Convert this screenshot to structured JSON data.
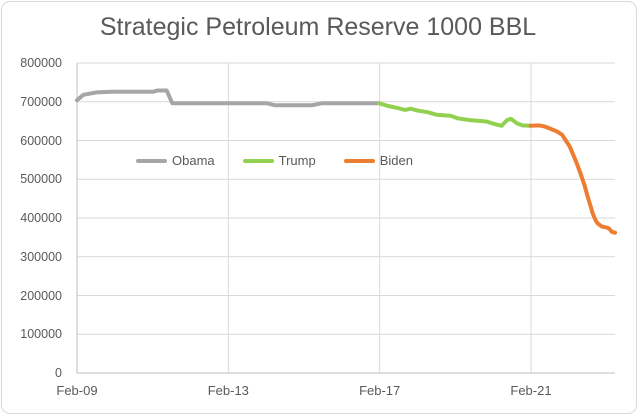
{
  "title": "Strategic Petroleum Reserve 1000 BBL",
  "colors": {
    "background": "#ffffff",
    "chart_border": "#d9d9d9",
    "gridline": "#d9d9d9",
    "axis_line": "#bfbfbf",
    "text": "#595959",
    "obama_gray": "#a6a6a6",
    "trump_green": "#92d050",
    "biden_orange": "#ed7d31"
  },
  "chart_data": {
    "type": "line",
    "title": "Strategic Petroleum Reserve 1000 BBL",
    "xlabel": "",
    "ylabel": "",
    "grid": true,
    "legend_position": "inside-plot-upper-left",
    "ylim": [
      0,
      800000
    ],
    "xlim": [
      2009.08,
      2023.3
    ],
    "y_ticks": [
      "0",
      "100000",
      "200000",
      "300000",
      "400000",
      "500000",
      "600000",
      "700000",
      "800000"
    ],
    "x_ticks": [
      "Feb-09",
      "Feb-13",
      "Feb-17",
      "Feb-21"
    ],
    "x_tick_years": [
      2009.08,
      2013.08,
      2017.08,
      2021.08
    ],
    "series": [
      {
        "name": "Obama",
        "color": "#a6a6a6",
        "points": [
          [
            2009.08,
            704000
          ],
          [
            2009.25,
            718000
          ],
          [
            2009.6,
            724000
          ],
          [
            2010.0,
            726000
          ],
          [
            2011.1,
            726000
          ],
          [
            2011.2,
            729000
          ],
          [
            2011.45,
            729000
          ],
          [
            2011.6,
            696000
          ],
          [
            2014.1,
            696000
          ],
          [
            2014.3,
            691000
          ],
          [
            2015.3,
            691000
          ],
          [
            2015.55,
            696000
          ],
          [
            2017.07,
            696000
          ]
        ]
      },
      {
        "name": "Trump",
        "color": "#92d050",
        "points": [
          [
            2017.07,
            696000
          ],
          [
            2017.3,
            689000
          ],
          [
            2017.55,
            684000
          ],
          [
            2017.75,
            679000
          ],
          [
            2017.9,
            682000
          ],
          [
            2018.1,
            677000
          ],
          [
            2018.35,
            673000
          ],
          [
            2018.6,
            666000
          ],
          [
            2018.95,
            664000
          ],
          [
            2019.15,
            657000
          ],
          [
            2019.5,
            652000
          ],
          [
            2019.9,
            649000
          ],
          [
            2020.1,
            643000
          ],
          [
            2020.3,
            638000
          ],
          [
            2020.45,
            653000
          ],
          [
            2020.55,
            656000
          ],
          [
            2020.7,
            645000
          ],
          [
            2020.85,
            639000
          ],
          [
            2021.07,
            638000
          ]
        ]
      },
      {
        "name": "Biden",
        "color": "#ed7d31",
        "points": [
          [
            2021.07,
            638000
          ],
          [
            2021.3,
            639000
          ],
          [
            2021.45,
            636000
          ],
          [
            2021.6,
            630000
          ],
          [
            2021.75,
            624000
          ],
          [
            2021.9,
            615000
          ],
          [
            2022.0,
            600000
          ],
          [
            2022.1,
            585000
          ],
          [
            2022.2,
            562000
          ],
          [
            2022.3,
            538000
          ],
          [
            2022.4,
            512000
          ],
          [
            2022.5,
            483000
          ],
          [
            2022.55,
            465000
          ],
          [
            2022.6,
            448000
          ],
          [
            2022.65,
            432000
          ],
          [
            2022.7,
            415000
          ],
          [
            2022.75,
            402000
          ],
          [
            2022.8,
            392000
          ],
          [
            2022.85,
            385000
          ],
          [
            2022.95,
            378000
          ],
          [
            2023.05,
            376000
          ],
          [
            2023.1,
            375000
          ],
          [
            2023.15,
            372000
          ],
          [
            2023.22,
            364000
          ],
          [
            2023.3,
            362000
          ]
        ]
      }
    ]
  }
}
